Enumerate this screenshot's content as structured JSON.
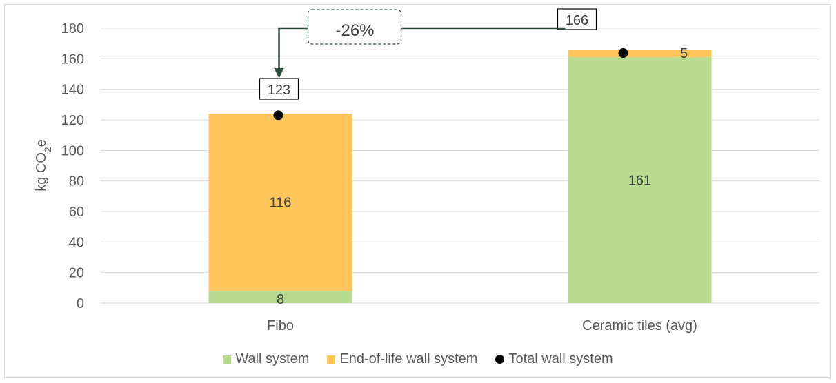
{
  "chart_data": {
    "type": "bar",
    "stacked": true,
    "categories": [
      "Fibo",
      "Ceramic tiles (avg)"
    ],
    "series": [
      {
        "name": "Wall system",
        "values": [
          8,
          161
        ],
        "color": "#b7dc8f"
      },
      {
        "name": "End-of-life wall system",
        "values": [
          116,
          5
        ],
        "color": "#ffc45a"
      }
    ],
    "totals": {
      "name": "Total wall system",
      "values": [
        123,
        166
      ],
      "color": "#000000"
    },
    "ylabel": "kg CO2e",
    "ylim": [
      0,
      180
    ],
    "yticks": [
      0,
      20,
      40,
      60,
      80,
      100,
      120,
      140,
      160,
      180
    ],
    "grid": true,
    "legend_position": "bottom",
    "annotation": {
      "text": "-26%",
      "from": "Ceramic tiles (avg)",
      "to": "Fibo"
    }
  },
  "legend": {
    "items": [
      {
        "label": "Wall system",
        "color": "#b7dc8f",
        "shape": "square"
      },
      {
        "label": "End-of-life wall system",
        "color": "#ffc45a",
        "shape": "square"
      },
      {
        "label": "Total wall system",
        "color": "#000000",
        "shape": "circle"
      }
    ]
  },
  "colors": {
    "grid": "#d9d9d9",
    "arrow": "#2f4f3f",
    "text": "#595959"
  }
}
